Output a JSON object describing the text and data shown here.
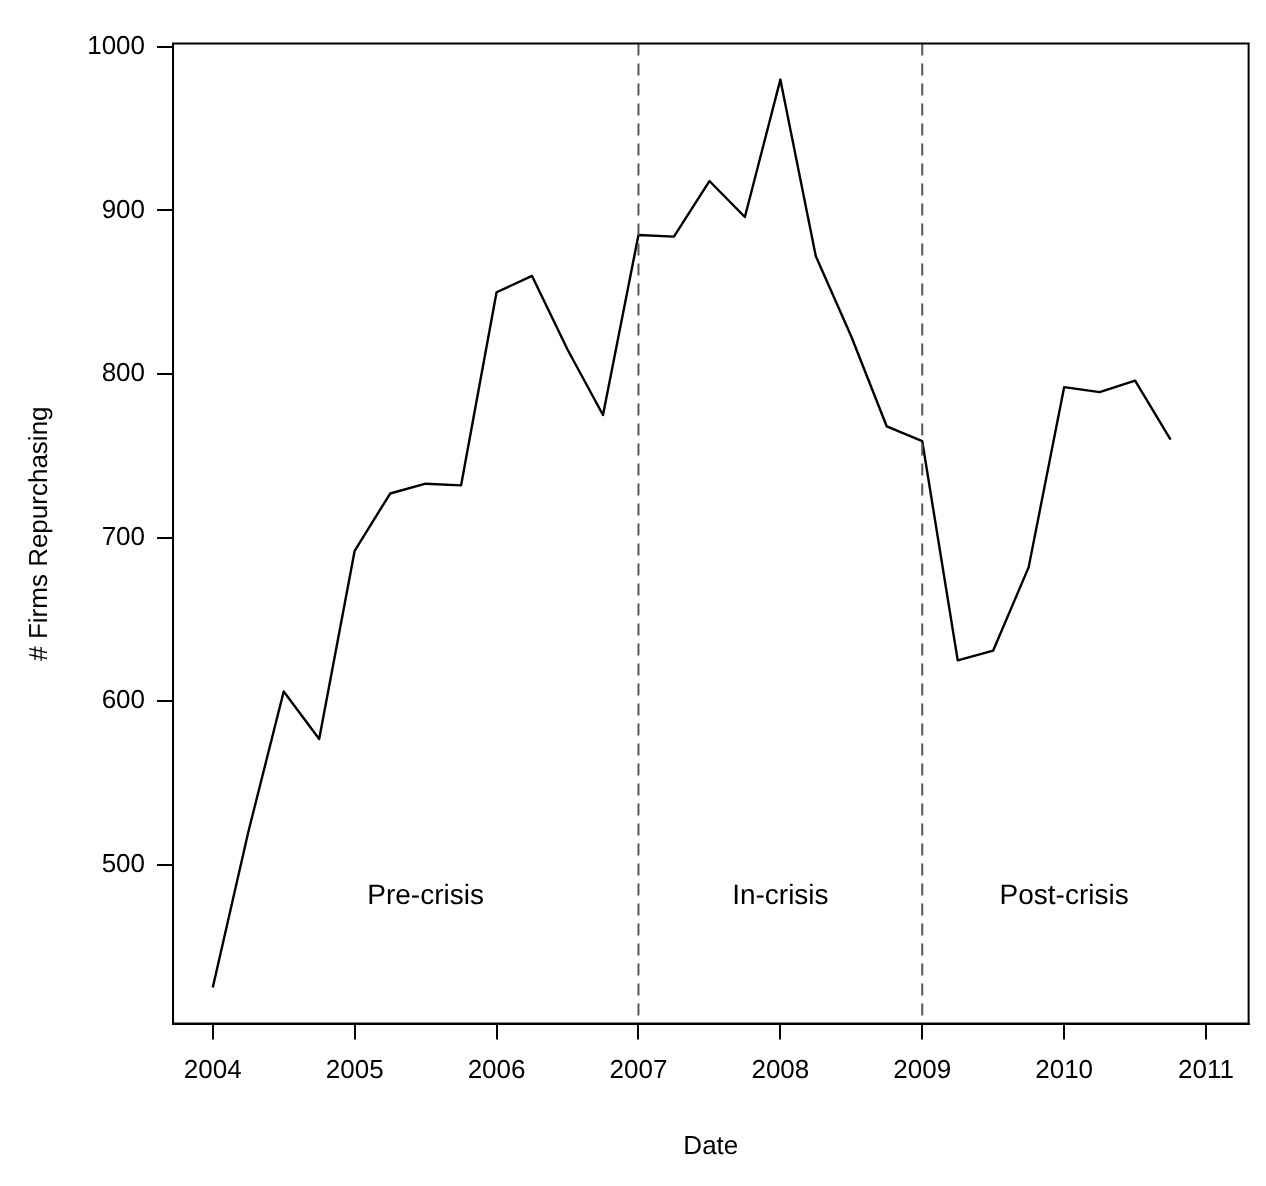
{
  "chart_data": {
    "type": "line",
    "xlabel": "Date",
    "ylabel": "# Firms Repurchasing",
    "x": [
      2004,
      2004.25,
      2004.5,
      2004.75,
      2005,
      2005.25,
      2005.5,
      2005.75,
      2006,
      2006.25,
      2006.5,
      2006.75,
      2007,
      2007.25,
      2007.5,
      2007.75,
      2008,
      2008.25,
      2008.5,
      2008.75,
      2009,
      2009.25,
      2009.5,
      2009.75,
      2010,
      2010.25,
      2010.5,
      2010.75
    ],
    "series": [
      {
        "color": "#000000",
        "values": [
          425,
          520,
          606,
          577,
          692,
          727,
          733,
          732,
          850,
          860,
          815,
          775,
          885,
          884,
          918,
          896,
          980,
          872,
          823,
          768,
          759,
          625,
          631,
          682,
          792,
          789,
          796,
          760
        ]
      }
    ],
    "xlim": [
      2003.72,
      2011.3
    ],
    "xticks": [
      2004,
      2005,
      2006,
      2007,
      2008,
      2009,
      2010,
      2011
    ],
    "ylim": [
      403,
      1002
    ],
    "yticks": [
      500,
      600,
      700,
      800,
      900,
      1000
    ],
    "ref_lines": [
      {
        "axis": "x",
        "value": 2007,
        "color": "#555555",
        "line_style": "dashed"
      },
      {
        "axis": "x",
        "value": 2009,
        "color": "#555555",
        "line_style": "dashed"
      }
    ],
    "annotations": [
      "Pre-crisis",
      "In-crisis",
      "Post-crisis"
    ],
    "grid": false,
    "legend": false,
    "marker": "none",
    "line_style": "solid"
  }
}
